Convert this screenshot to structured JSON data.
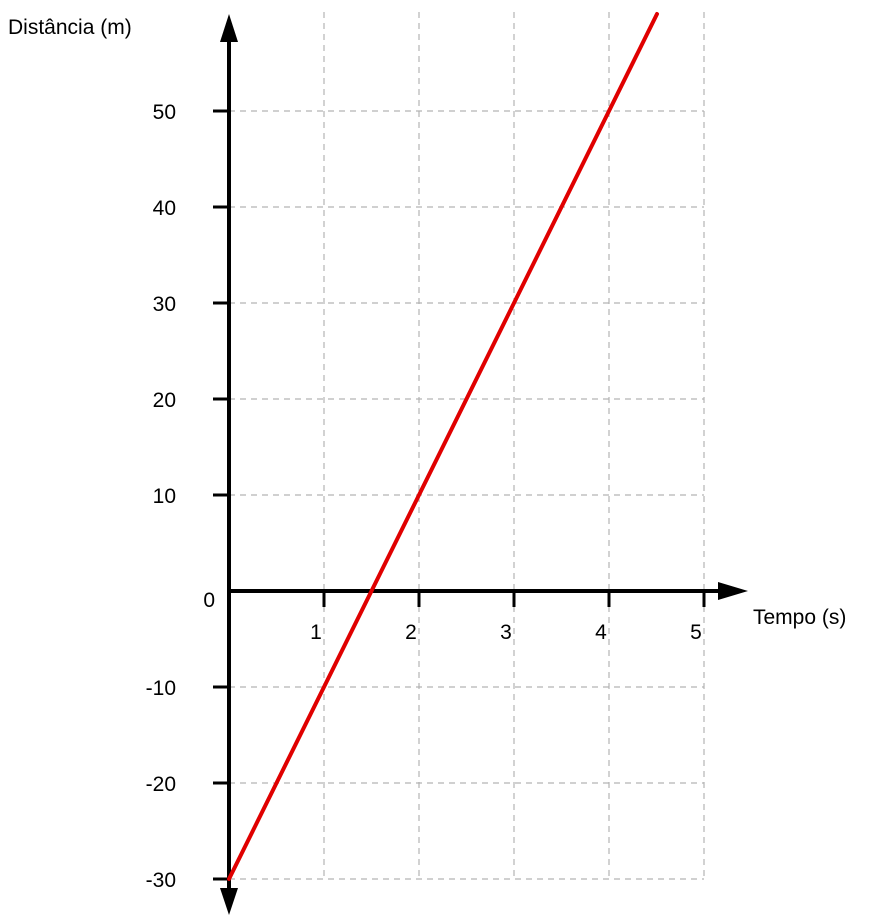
{
  "chart_data": {
    "type": "line",
    "xlabel": "Tempo (s)",
    "ylabel": "Distância (m)",
    "x_ticks": [
      "1",
      "2",
      "3",
      "4",
      "5"
    ],
    "y_ticks": [
      "-30",
      "-20",
      "-10",
      "0",
      "10",
      "20",
      "30",
      "40",
      "50"
    ],
    "xlim": [
      0,
      5
    ],
    "ylim": [
      -30,
      50
    ],
    "grid": true,
    "series": [
      {
        "x": [
          0,
          1,
          1.5,
          2,
          3,
          4
        ],
        "values": [
          -30,
          -10,
          0,
          10,
          30,
          50
        ],
        "color": "#e00000"
      }
    ]
  }
}
